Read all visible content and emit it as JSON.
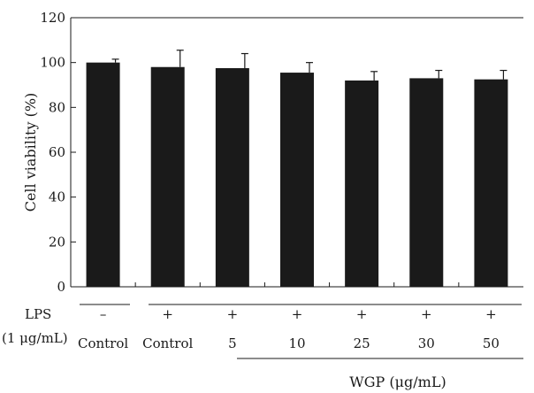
{
  "chart_data": {
    "type": "bar",
    "title": "",
    "xlabel": "",
    "ylabel": "Cell viability (%)",
    "ylim": [
      0,
      120
    ],
    "yticks": [
      0,
      20,
      40,
      60,
      80,
      100,
      120
    ],
    "grid": false,
    "legend": "none",
    "bar_color": "#1a1a1a",
    "categories": [
      "Control",
      "Control",
      "5",
      "10",
      "25",
      "30",
      "50"
    ],
    "series": [
      {
        "values": [
          100,
          98,
          97.5,
          95.5,
          92,
          93,
          92.5
        ],
        "error": [
          1.5,
          7.5,
          6.5,
          4.5,
          4,
          3.5,
          4
        ]
      }
    ],
    "lps_label_line1": "LPS",
    "lps_label_line2": "(1 μg/mL)",
    "lps_signs": [
      "–",
      "+",
      "+",
      "+",
      "+",
      "+",
      "+"
    ],
    "wgp_label": "WGP (μg/mL)"
  }
}
